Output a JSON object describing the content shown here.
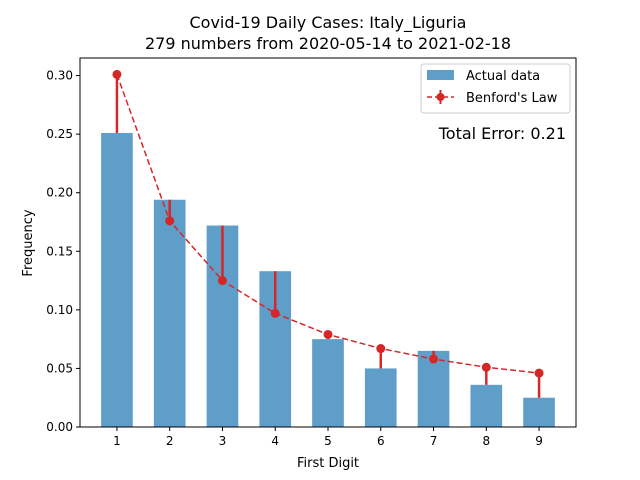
{
  "chart_data": {
    "type": "bar",
    "title": "Covid-19 Daily Cases: Italy_Liguria",
    "subtitle": "279 numbers from 2020-05-14 to 2021-02-18",
    "xlabel": "First Digit",
    "ylabel": "Frequency",
    "categories": [
      "1",
      "2",
      "3",
      "4",
      "5",
      "6",
      "7",
      "8",
      "9"
    ],
    "ylim": [
      0,
      0.3
    ],
    "yticks": [
      "0.00",
      "0.05",
      "0.10",
      "0.15",
      "0.20",
      "0.25",
      "0.30"
    ],
    "grid": false,
    "legend_position": "top-right",
    "series": [
      {
        "name": "Actual data",
        "kind": "bar",
        "color": "#5f9ec8",
        "values": [
          0.251,
          0.194,
          0.172,
          0.133,
          0.075,
          0.05,
          0.065,
          0.036,
          0.025
        ]
      },
      {
        "name": "Benford's Law",
        "kind": "line",
        "style": "dashed",
        "color": "#d62728",
        "values": [
          0.301,
          0.176,
          0.125,
          0.097,
          0.079,
          0.067,
          0.058,
          0.051,
          0.046
        ]
      }
    ],
    "annotation": "Total Error: 0.21",
    "annotation_color": "#d62728"
  }
}
